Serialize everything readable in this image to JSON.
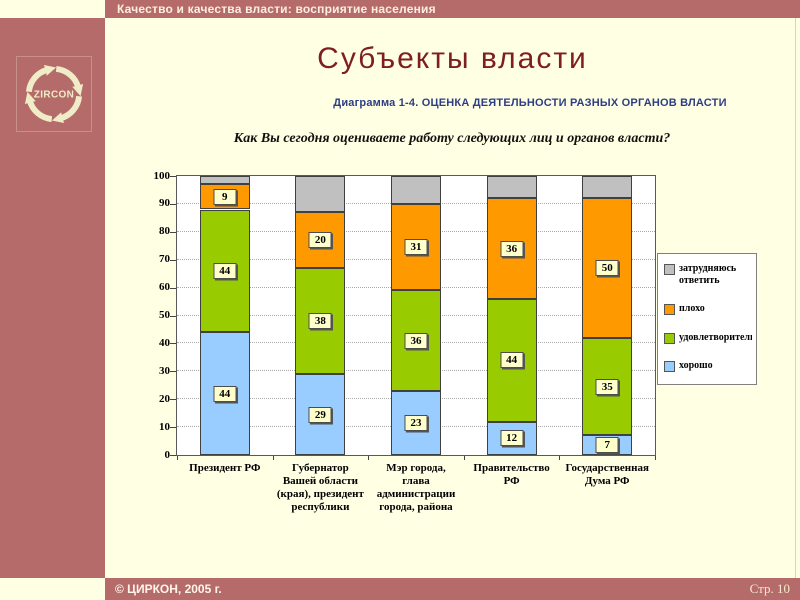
{
  "header": {
    "title": "Качество и качества власти: восприятие населения"
  },
  "sidebar": {
    "logo_text": "ZIRCON"
  },
  "slide": {
    "title": "Субъекты власти",
    "chart_heading": "Диаграмма 1-4. ОЦЕНКА ДЕЯТЕЛЬНОСТИ РАЗНЫХ ОРГАНОВ ВЛАСТИ",
    "chart_question": "Как Вы сегодня оцениваете работу следующих лиц и органов власти?"
  },
  "footer": {
    "copyright": "© ЦИРКОН, 2005 г.",
    "page": "Стр. 10"
  },
  "chart_data": {
    "type": "bar",
    "stacked": true,
    "title": "Диаграмма 1-4. ОЦЕНКА ДЕЯТЕЛЬНОСТИ РАЗНЫХ ОРГАНОВ ВЛАСТИ",
    "subtitle": "Как Вы сегодня оцениваете работу следующих лиц и органов власти?",
    "categories": [
      "Президент РФ",
      "Губернатор Вашей области (края), президент республики",
      "Мэр города, глава администрации города, района",
      "Правительство РФ",
      "Государственная Дума РФ"
    ],
    "category_lines": [
      [
        "Президент РФ"
      ],
      [
        "Губернатор",
        "Вашей области",
        "(края), президент",
        "республики"
      ],
      [
        "Мэр города,",
        "глава",
        "администрации",
        "города, района"
      ],
      [
        "Правительство",
        "РФ"
      ],
      [
        "Государственная",
        "Дума РФ"
      ]
    ],
    "series": [
      {
        "name": "хорошо",
        "color": "#99CCFF",
        "values": [
          44,
          29,
          23,
          12,
          7
        ],
        "labels": true
      },
      {
        "name": "удовлетворительно",
        "color": "#99CC00",
        "values": [
          44,
          38,
          36,
          44,
          35
        ],
        "labels": true
      },
      {
        "name": "плохо",
        "color": "#FF9900",
        "values": [
          9,
          20,
          31,
          36,
          50
        ],
        "labels": true
      },
      {
        "name": "затрудняюсь ответить",
        "color": "#C0C0C0",
        "values": [
          3,
          13,
          10,
          8,
          8
        ],
        "labels": false
      }
    ],
    "legend": [
      {
        "label": "затрудняюсь ответить",
        "color": "#C0C0C0"
      },
      {
        "label": "плохо",
        "color": "#FF9900"
      },
      {
        "label": "удовлетворительно",
        "color": "#99CC00"
      },
      {
        "label": "хорошо",
        "color": "#99CCFF"
      }
    ],
    "ylim": [
      0,
      100
    ],
    "ytick_step": 10,
    "grid": true,
    "legend_position": "right"
  }
}
